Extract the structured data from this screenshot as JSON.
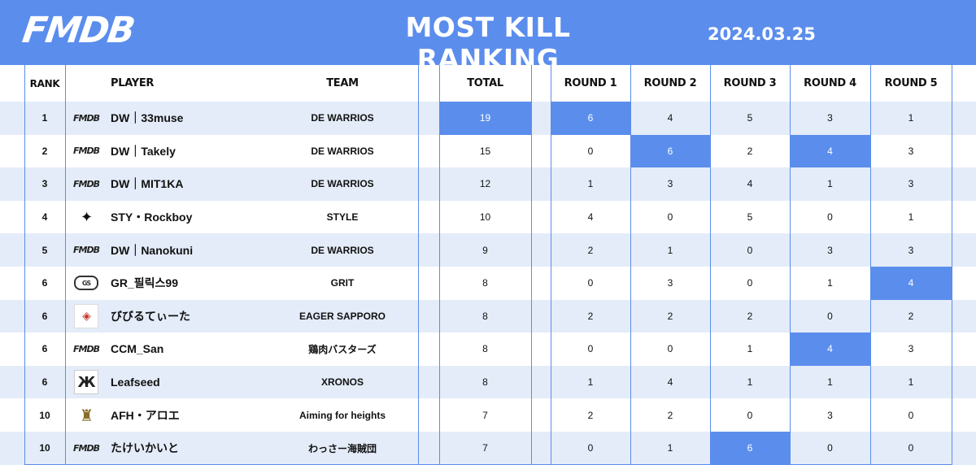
{
  "header": {
    "logo_text": "FMDB",
    "title": "MOST KILL RANKING",
    "date": "2024.03.25"
  },
  "columns": {
    "rank": "RANK",
    "player": "PLAYER",
    "team": "TEAM",
    "total": "TOTAL",
    "round1": "ROUND 1",
    "round2": "ROUND 2",
    "round3": "ROUND 3",
    "round4": "ROUND 4",
    "round5": "ROUND 5"
  },
  "accent_color": "#5b8ded",
  "row_shade_color": "#e4ecf9",
  "rows": [
    {
      "rank": "1",
      "logo": "fmdb-logo",
      "player": "DW｜33muse",
      "team": "DE WARRIOS",
      "total": "19",
      "r1": "6",
      "r2": "4",
      "r3": "5",
      "r4": "3",
      "r5": "1",
      "highlight": [
        "total",
        "r1"
      ]
    },
    {
      "rank": "2",
      "logo": "fmdb-logo",
      "player": "DW｜Takely",
      "team": "DE WARRIOS",
      "total": "15",
      "r1": "0",
      "r2": "6",
      "r3": "2",
      "r4": "4",
      "r5": "3",
      "highlight": [
        "r2",
        "r4"
      ]
    },
    {
      "rank": "3",
      "logo": "fmdb-logo",
      "player": "DW｜MIT1KA",
      "team": "DE WARRIOS",
      "total": "12",
      "r1": "1",
      "r2": "3",
      "r3": "4",
      "r4": "1",
      "r5": "3",
      "highlight": []
    },
    {
      "rank": "4",
      "logo": "style-logo",
      "player": "STY・Rockboy",
      "team": "STYLE",
      "total": "10",
      "r1": "4",
      "r2": "0",
      "r3": "5",
      "r4": "0",
      "r5": "1",
      "highlight": []
    },
    {
      "rank": "5",
      "logo": "fmdb-logo",
      "player": "DW｜Nanokuni",
      "team": "DE WARRIOS",
      "total": "9",
      "r1": "2",
      "r2": "1",
      "r3": "0",
      "r4": "3",
      "r5": "3",
      "highlight": []
    },
    {
      "rank": "6",
      "logo": "grit-logo",
      "player": "GR_필릭스99",
      "team": "GRIT",
      "total": "8",
      "r1": "0",
      "r2": "3",
      "r3": "0",
      "r4": "1",
      "r5": "4",
      "highlight": [
        "r5"
      ]
    },
    {
      "rank": "6",
      "logo": "eager-sapporo-logo",
      "player": "びびるてぃーた",
      "team": "EAGER SAPPORO",
      "total": "8",
      "r1": "2",
      "r2": "2",
      "r3": "2",
      "r4": "0",
      "r5": "2",
      "highlight": []
    },
    {
      "rank": "6",
      "logo": "fmdb-logo",
      "player": "CCM_San",
      "team": "鶏肉バスターズ",
      "total": "8",
      "r1": "0",
      "r2": "0",
      "r3": "1",
      "r4": "4",
      "r5": "3",
      "highlight": [
        "r4"
      ]
    },
    {
      "rank": "6",
      "logo": "xronos-logo",
      "player": "Leafseed",
      "team": "XRONOS",
      "total": "8",
      "r1": "1",
      "r2": "4",
      "r3": "1",
      "r4": "1",
      "r5": "1",
      "highlight": []
    },
    {
      "rank": "10",
      "logo": "afh-logo",
      "player": "AFH・アロエ",
      "team": "Aiming for heights",
      "total": "7",
      "r1": "2",
      "r2": "2",
      "r3": "0",
      "r4": "3",
      "r5": "0",
      "highlight": []
    },
    {
      "rank": "10",
      "logo": "fmdb-logo",
      "player": "たけいかいと",
      "team": "わっさー海賊団",
      "total": "7",
      "r1": "0",
      "r2": "1",
      "r3": "6",
      "r4": "0",
      "r5": "0",
      "highlight": [
        "r3"
      ]
    }
  ]
}
